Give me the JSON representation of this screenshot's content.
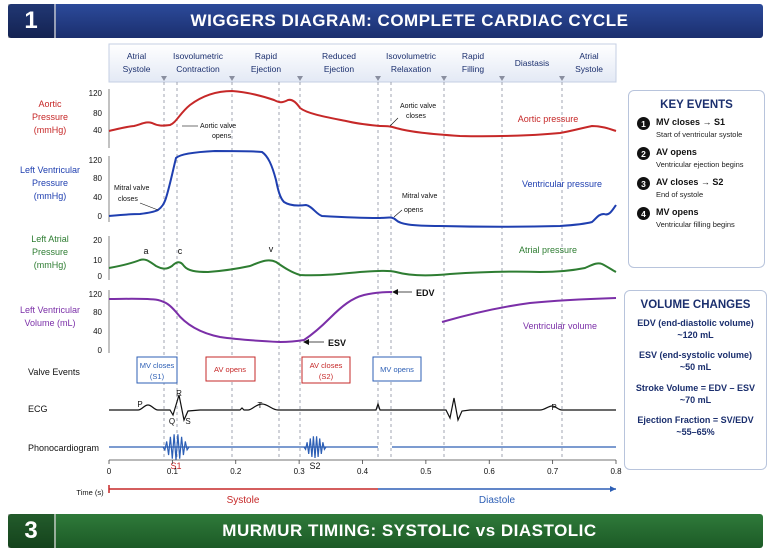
{
  "banner_top": {
    "number": "1",
    "title": "WIGGERS DIAGRAM: COMPLETE CARDIAC CYCLE"
  },
  "banner_bottom": {
    "number": "3",
    "title": "MURMUR TIMING: SYSTOLIC vs DIASTOLIC"
  },
  "phases": [
    {
      "l1": "Atrial",
      "l2": "Systole"
    },
    {
      "l1": "Isovolumetric",
      "l2": "Contraction"
    },
    {
      "l1": "Rapid",
      "l2": "Ejection"
    },
    {
      "l1": "Reduced",
      "l2": "Ejection"
    },
    {
      "l1": "Isovolumetric",
      "l2": "Relaxation"
    },
    {
      "l1": "Rapid",
      "l2": "Filling"
    },
    {
      "l1": "Diastasis",
      "l2": ""
    },
    {
      "l1": "Atrial",
      "l2": "Systole"
    }
  ],
  "panels": {
    "aortic": {
      "l1": "Aortic",
      "l2": "Pressure",
      "l3": "(mmHg)",
      "ticks": [
        "120",
        "80",
        "40"
      ],
      "trace_label": "Aortic pressure",
      "ann1_l1": "Aortic valve",
      "ann1_l2": "opens",
      "ann2_l1": "Aortic valve",
      "ann2_l2": "closes"
    },
    "lv": {
      "l1": "Left Ventricular",
      "l2": "Pressure",
      "l3": "(mmHg)",
      "ticks": [
        "120",
        "80",
        "40",
        "0"
      ],
      "trace_label": "Ventricular pressure",
      "ann1_l1": "Mitral valve",
      "ann1_l2": "closes",
      "ann2_l1": "Mitral valve",
      "ann2_l2": "opens"
    },
    "la": {
      "l1": "Left Atrial",
      "l2": "Pressure",
      "l3": "(mmHg)",
      "ticks": [
        "20",
        "10",
        "0"
      ],
      "trace_label": "Atrial pressure",
      "wave_a": "a",
      "wave_c": "c",
      "wave_v": "v"
    },
    "vol": {
      "l1": "Left Ventricular",
      "l2": "Volume (mL)",
      "ticks": [
        "120",
        "80",
        "40",
        "0"
      ],
      "trace_label": "Ventricular volume",
      "edv": "EDV",
      "esv": "ESV"
    }
  },
  "valve_events": {
    "label": "Valve Events",
    "boxes": [
      {
        "l1": "MV closes",
        "l2": "(S1)",
        "color": "#2d5fb5"
      },
      {
        "l1": "AV opens",
        "l2": "",
        "color": "#c62828"
      },
      {
        "l1": "AV closes",
        "l2": "(S2)",
        "color": "#c62828"
      },
      {
        "l1": "MV opens",
        "l2": "",
        "color": "#2d5fb5"
      }
    ]
  },
  "ecg": {
    "label": "ECG",
    "p": "P",
    "q": "Q",
    "r": "R",
    "s": "S",
    "t": "T",
    "p2": "P"
  },
  "pcg": {
    "label": "Phonocardiogram",
    "s1": "S1",
    "s2": "S2"
  },
  "time_axis": {
    "label": "Time (s)",
    "ticks": [
      "0",
      "0.1",
      "0.2",
      "0.3",
      "0.4",
      "0.5",
      "0.6",
      "0.7",
      "0.8"
    ],
    "systole": "Systole",
    "diastole": "Diastole"
  },
  "key_events": {
    "title": "KEY EVENTS",
    "items": [
      {
        "n": "1",
        "l1": "MV closes → S1",
        "l2": "Start of ventricular systole"
      },
      {
        "n": "2",
        "l1": "AV opens",
        "l2": "Ventricular ejection begins"
      },
      {
        "n": "3",
        "l1": "AV closes → S2",
        "l2": "End of systole"
      },
      {
        "n": "4",
        "l1": "MV opens",
        "l2": "Ventricular filling begins"
      }
    ]
  },
  "volume_changes": {
    "title": "VOLUME CHANGES",
    "edv_l1": "EDV (end-diastolic volume)",
    "edv_l2": "~120 mL",
    "esv_l1": "ESV (end-systolic volume)",
    "esv_l2": "~50 mL",
    "sv_l1": "Stroke Volume = EDV – ESV",
    "sv_l2": "~70 mL",
    "ef_l1": "Ejection Fraction = SV/EDV",
    "ef_l2": "~55–65%"
  },
  "colors": {
    "aortic": "#c62828",
    "lv": "#1f3fb0",
    "la": "#2e7d32",
    "vol": "#7b2fa8",
    "navy": "#1b2f6e",
    "systole": "#c62828",
    "diastole": "#2d5fb5"
  }
}
